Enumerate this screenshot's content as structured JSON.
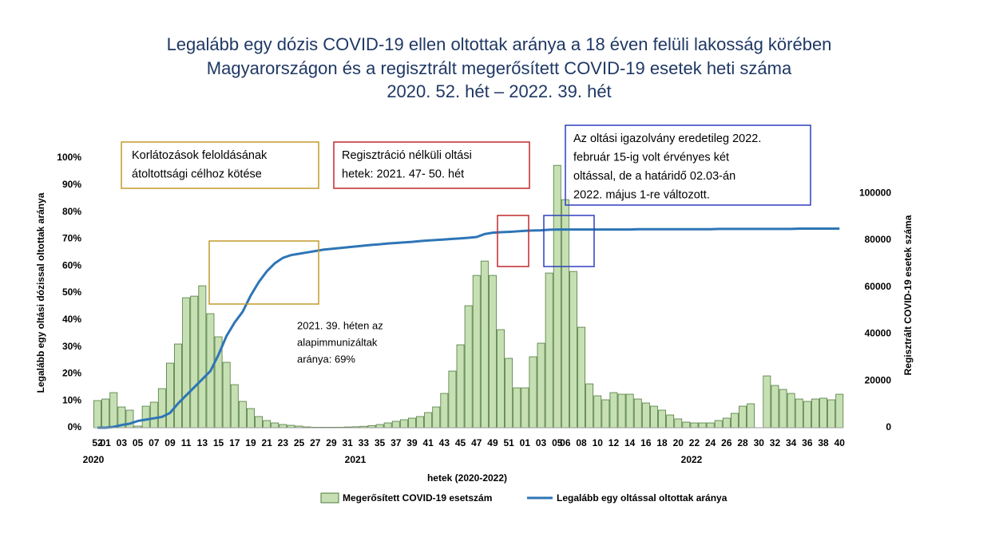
{
  "chart_data": {
    "type": "bar_line",
    "title": [
      "Legalább egy dózis COVID-19 ellen oltottak aránya a 18 éven felüli lakosság körében",
      "Magyarországon és a regisztrált megerősített COVID-19 esetek heti száma",
      "2020. 52. hét – 2022. 39. hét"
    ],
    "x_label": "hetek (2020-2022)",
    "y_label": "Legalább egy oltási dózissal oltottak aránya",
    "y2_label": "Regisztrált COVID-19 esetek száma",
    "year_labels": [
      "2020",
      "2021",
      "2022"
    ],
    "categories": [
      "52",
      "01",
      null,
      "03",
      null,
      "05",
      null,
      "07",
      null,
      "09",
      null,
      "11",
      null,
      "13",
      null,
      "15",
      null,
      "17",
      null,
      "19",
      null,
      "21",
      null,
      "23",
      null,
      "25",
      null,
      "27",
      null,
      "29",
      null,
      "31",
      null,
      "33",
      null,
      "35",
      null,
      "37",
      null,
      "39",
      null,
      "41",
      null,
      "43",
      null,
      "45",
      null,
      "47",
      null,
      "49",
      null,
      "51",
      null,
      "01",
      null,
      "03",
      null,
      "05",
      "06",
      null,
      "08",
      null,
      "10",
      null,
      "12",
      null,
      "14",
      null,
      "16",
      null,
      "18",
      null,
      "20",
      null,
      "22",
      null,
      "24",
      null,
      "26",
      null,
      "28",
      null,
      "30",
      null,
      "32",
      null,
      "34",
      null,
      "36",
      null,
      "38",
      null,
      "40"
    ],
    "series": [
      {
        "name": "Megerősített COVID-19 esetszám",
        "kind": "bar",
        "axis": "y2",
        "color": "#c6e0b4",
        "edge": "#4e7a3c",
        "values": [
          11560,
          12240,
          14960,
          8840,
          7480,
          680,
          9180,
          10880,
          16660,
          27540,
          35700,
          55420,
          56100,
          60520,
          48620,
          38760,
          27880,
          18360,
          11220,
          8160,
          4760,
          3060,
          2040,
          1360,
          1020,
          680,
          340,
          200,
          200,
          200,
          200,
          300,
          400,
          600,
          900,
          1360,
          2040,
          2720,
          3400,
          4080,
          4760,
          6460,
          8840,
          14620,
          24140,
          35360,
          52020,
          64940,
          71060,
          64940,
          41820,
          29580,
          17000,
          17000,
          30260,
          36040,
          65960,
          111860,
          97240,
          66640,
          42840,
          18700,
          13600,
          11900,
          14960,
          14280,
          14280,
          12240,
          10540,
          9180,
          7480,
          5440,
          3740,
          2380,
          2040,
          2040,
          2040,
          3060,
          4080,
          6120,
          9180,
          10200,
          null,
          22100,
          18020,
          16320,
          14620,
          12240,
          11220,
          12240,
          12580,
          11900,
          14280
        ]
      },
      {
        "name": "Legalább egy oltással oltottak aránya",
        "kind": "line",
        "axis": "y",
        "color": "#2e75b6",
        "values": [
          0,
          0,
          0.3,
          1,
          1.5,
          2.5,
          3,
          3.5,
          4,
          5.5,
          9,
          12,
          15,
          18,
          21,
          27,
          34,
          39,
          43,
          49,
          54,
          58,
          61,
          63,
          64,
          64.5,
          65,
          65.5,
          66,
          66.3,
          66.6,
          66.9,
          67.2,
          67.5,
          67.8,
          68,
          68.3,
          68.5,
          68.7,
          68.9,
          69.2,
          69.4,
          69.6,
          69.8,
          70,
          70.2,
          70.4,
          70.7,
          71.8,
          72.3,
          72.5,
          72.6,
          72.8,
          73,
          73.1,
          73.2,
          73.4,
          73.5,
          73.5,
          73.5,
          73.5,
          73.5,
          73.5,
          73.5,
          73.5,
          73.5,
          73.5,
          73.6,
          73.6,
          73.6,
          73.6,
          73.6,
          73.6,
          73.6,
          73.6,
          73.6,
          73.6,
          73.7,
          73.7,
          73.7,
          73.7,
          73.7,
          73.7,
          73.7,
          73.7,
          73.7,
          73.7,
          73.8,
          73.8,
          73.8,
          73.8,
          73.8,
          73.8
        ]
      }
    ],
    "ylim": [
      0,
      100
    ],
    "yticks": [
      {
        "value": 0,
        "label": "0%"
      },
      {
        "value": 10,
        "label": "10%"
      },
      {
        "value": 20,
        "label": "20%"
      },
      {
        "value": 30,
        "label": "30%"
      },
      {
        "value": 40,
        "label": "40%"
      },
      {
        "value": 50,
        "label": "50%"
      },
      {
        "value": 60,
        "label": "60%"
      },
      {
        "value": 70,
        "label": "70%"
      },
      {
        "value": 80,
        "label": "80%"
      },
      {
        "value": 90,
        "label": "90%"
      },
      {
        "value": 100,
        "label": "100%"
      }
    ],
    "y2lim": [
      0,
      115000
    ],
    "y2ticks": [
      0,
      20000,
      40000,
      60000,
      80000,
      100000
    ],
    "legend": "bottom",
    "annotations": [
      {
        "lines": [
          "Korlátozások feloldásának",
          "átoltottsági célhoz kötése"
        ],
        "color": "#c49a2c"
      },
      {
        "lines": [
          "Regisztráció nélküli oltási",
          "hetek: 2021. 47- 50. hét"
        ],
        "color": "#c0282d"
      },
      {
        "lines": [
          "Az oltási igazolvány eredetileg 2022.",
          "február 15-ig volt érvényes két",
          "oltással, de a határidő 02.03-án",
          "2022. május 1-re változott."
        ],
        "color": "#2f3fbf"
      },
      {
        "lines": [
          "2021. 39. héten az",
          "alapimmunizáltak",
          "aránya: 69%"
        ]
      }
    ]
  }
}
